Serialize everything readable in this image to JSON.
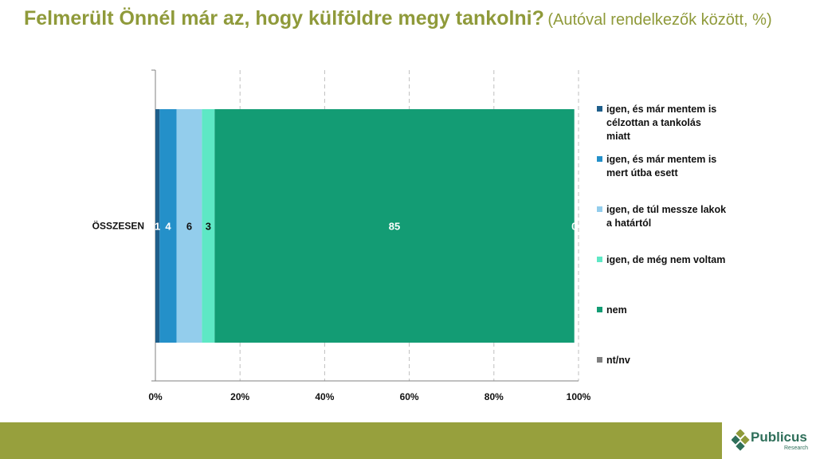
{
  "title": {
    "main": "Felmerült Önnél már az, hogy külföldre megy tankolni?",
    "sub": "(Autóval rendelkezők között, %)"
  },
  "chart_data": {
    "type": "bar",
    "orientation": "horizontal",
    "stacked": true,
    "categories": [
      "ÖSSZESEN"
    ],
    "series": [
      {
        "name": "igen, és már mentem is célzottan a tankolás miatt",
        "values": [
          1
        ],
        "color": "#1f5f8b",
        "label_color": "#ffffff",
        "legend_lines": [
          "igen, és már mentem is",
          "célzottan a tankolás",
          "miatt"
        ]
      },
      {
        "name": "igen, és már mentem is mert útba esett",
        "values": [
          4
        ],
        "color": "#2490c9",
        "label_color": "#ffffff",
        "legend_lines": [
          "igen, és már mentem is",
          "mert útba esett"
        ]
      },
      {
        "name": "igen, de túl messze lakok a határtól",
        "values": [
          6
        ],
        "color": "#93cdec",
        "label_color": "#111111",
        "legend_lines": [
          "igen, de túl messze lakok",
          "a határtól"
        ]
      },
      {
        "name": "igen, de még nem voltam",
        "values": [
          3
        ],
        "color": "#5ee8c5",
        "label_color": "#111111",
        "legend_lines": [
          "igen, de még nem voltam"
        ]
      },
      {
        "name": "nem",
        "values": [
          85
        ],
        "color": "#139c74",
        "label_color": "#ffffff",
        "legend_lines": [
          "nem"
        ]
      },
      {
        "name": "nt/nv",
        "values": [
          0
        ],
        "color": "#7f7f7f",
        "label_color": "#ffffff",
        "legend_lines": [
          "nt/nv"
        ]
      }
    ],
    "xlim": [
      0,
      100
    ],
    "x_ticks": [
      "0%",
      "20%",
      "40%",
      "60%",
      "80%",
      "100%"
    ],
    "grid": "vertical-dashed",
    "legend_position": "right"
  },
  "brand": {
    "name": "Publicus",
    "tagline": "Research"
  }
}
